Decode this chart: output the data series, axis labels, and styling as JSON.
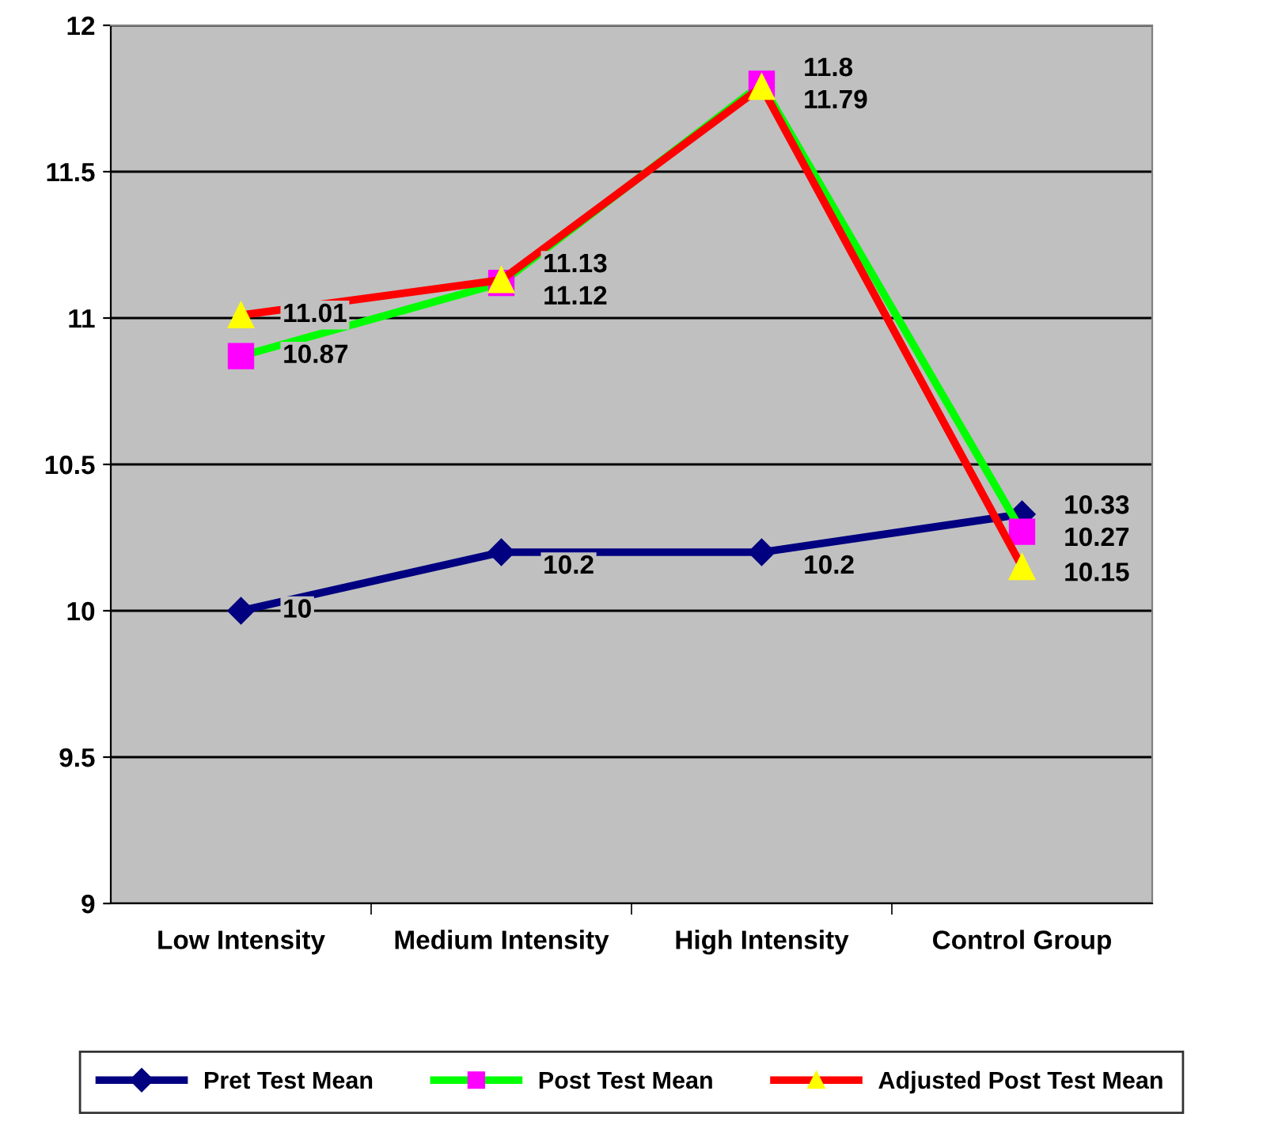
{
  "chart_data": {
    "type": "line",
    "categories": [
      "Low Intensity",
      "Medium Intensity",
      "High Intensity",
      "Control Group"
    ],
    "series": [
      {
        "name": "Pret Test Mean",
        "color": "#000080",
        "marker": "diamond",
        "values": [
          10,
          10.2,
          10.2,
          10.33
        ]
      },
      {
        "name": "Post Test Mean",
        "color": "#00ff00",
        "marker": "square",
        "values": [
          10.87,
          11.12,
          11.8,
          10.27
        ]
      },
      {
        "name": "Adjusted Post Test Mean",
        "color": "#ff0000",
        "marker": "triangle",
        "values": [
          11.01,
          11.13,
          11.79,
          10.15
        ]
      }
    ],
    "ylim": [
      9,
      12
    ],
    "yticks": [
      9,
      9.5,
      10,
      10.5,
      11,
      11.5,
      12
    ],
    "grid": "y",
    "legend": "bottom",
    "data_labels": true
  }
}
